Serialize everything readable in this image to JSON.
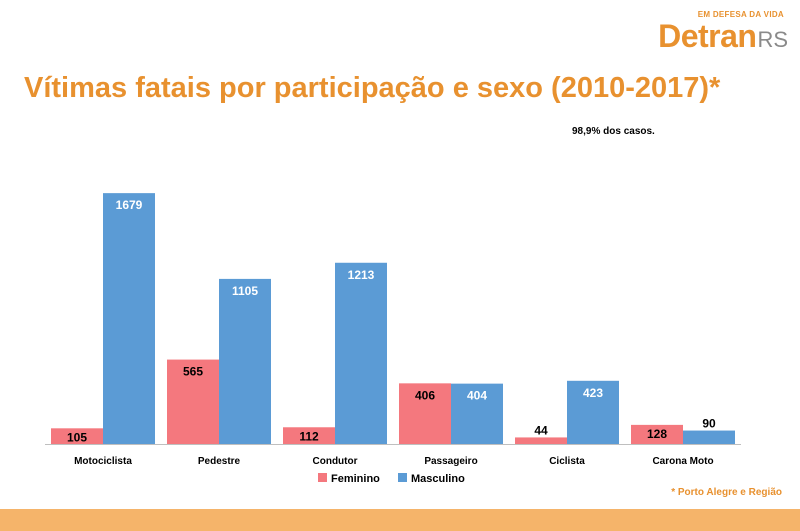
{
  "brand": {
    "tagline": "EM DEFESA DA VIDA",
    "name_main": "Detran",
    "name_suffix": "RS",
    "color": "#e8912f"
  },
  "note": "98,9% dos casos.",
  "footer_note": "* Porto Alegre e Região",
  "chart_data": {
    "type": "bar",
    "title": "Vítimas fatais por participação e sexo (2010-2017)*",
    "categories": [
      "Motociclista",
      "Pedestre",
      "Condutor",
      "Passageiro",
      "Ciclista",
      "Carona Moto"
    ],
    "series": [
      {
        "name": "Feminino",
        "color": "#f4787e",
        "values": [
          105,
          565,
          112,
          406,
          44,
          128
        ]
      },
      {
        "name": "Masculino",
        "color": "#5b9bd5",
        "values": [
          1679,
          1105,
          1213,
          404,
          423,
          90
        ]
      }
    ],
    "ylim": [
      0,
      1700
    ],
    "grid": false,
    "legend": "bottom"
  }
}
